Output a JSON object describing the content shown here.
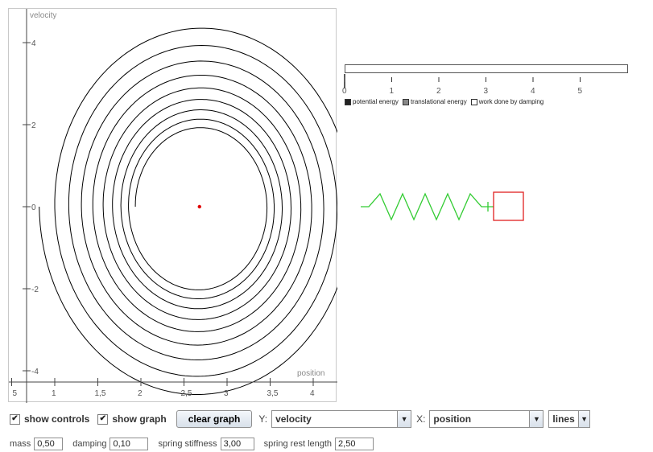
{
  "graph": {
    "y_label": "velocity",
    "x_label": "position",
    "x_ticks": [
      "5",
      "1",
      "1,5",
      "2",
      "2,5",
      "3",
      "3,5",
      "4"
    ],
    "y_ticks": [
      "4",
      "2",
      "0",
      "-2",
      "-4"
    ],
    "trajectory_color": "#000000",
    "current_point_color": "#e00000"
  },
  "chart_data": {
    "type": "line",
    "xlabel": "position",
    "ylabel": "velocity",
    "xlim": [
      0.5,
      4.25
    ],
    "ylim": [
      -4.6,
      4.7
    ],
    "series": [
      {
        "points": [
          [
            0.5,
            0.0
          ],
          [
            1.1,
            3.3
          ],
          [
            2.5,
            4.6
          ],
          [
            3.9,
            3.3
          ],
          [
            4.3,
            0.0
          ],
          [
            3.8,
            -3.7
          ],
          [
            2.5,
            -4.7
          ],
          [
            1.2,
            -3.6
          ],
          [
            0.7,
            0.0
          ],
          [
            1.2,
            3.0
          ],
          [
            2.5,
            4.0
          ],
          [
            3.7,
            2.9
          ],
          [
            4.0,
            0.0
          ],
          [
            3.6,
            -3.2
          ],
          [
            2.5,
            -4.0
          ],
          [
            1.4,
            -3.0
          ],
          [
            1.0,
            0.0
          ]
        ]
      }
    ],
    "current_point": {
      "x": 2.68,
      "y": 0.0
    }
  },
  "energy": {
    "ticks": [
      "0",
      "1",
      "2",
      "3",
      "4",
      "5"
    ],
    "legend": [
      {
        "label": "potential energy",
        "color": "#222222"
      },
      {
        "label": "translational energy",
        "color": "#888888"
      },
      {
        "label": "work done by damping",
        "color": "#ffffff"
      }
    ]
  },
  "spring": {
    "coil_color": "#33cc33",
    "mass_color": "#e02020"
  },
  "controls": {
    "show_controls": {
      "label": "show controls",
      "checked": true
    },
    "show_graph": {
      "label": "show graph",
      "checked": true
    },
    "clear_graph": "clear graph",
    "y_prefix": "Y:",
    "y_value": "velocity",
    "x_prefix": "X:",
    "x_value": "position",
    "style_value": "lines",
    "check_mark": "✔",
    "arrow": "▼"
  },
  "params": [
    {
      "label": "mass",
      "value": "0,50"
    },
    {
      "label": "damping",
      "value": "0,10"
    },
    {
      "label": "spring stiffness",
      "value": "3,00"
    },
    {
      "label": "spring rest length",
      "value": "2,50"
    }
  ]
}
